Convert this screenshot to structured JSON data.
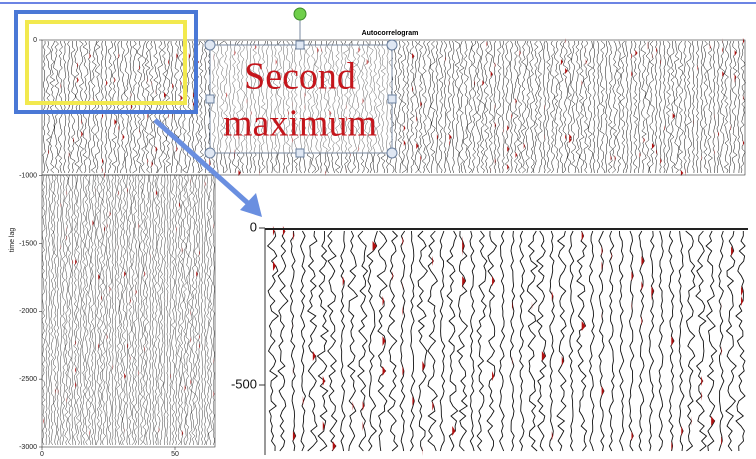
{
  "title": "Autocorrelogram",
  "y_axis_label": "time lag",
  "y_ticks": [
    0,
    -1000,
    -1500,
    -2000,
    -2500,
    -3000
  ],
  "x_ticks": [
    0,
    50
  ],
  "annotation": {
    "line1": "Second",
    "line2": "maximum"
  },
  "zoom": {
    "y_ticks": [
      0,
      -500
    ]
  }
}
